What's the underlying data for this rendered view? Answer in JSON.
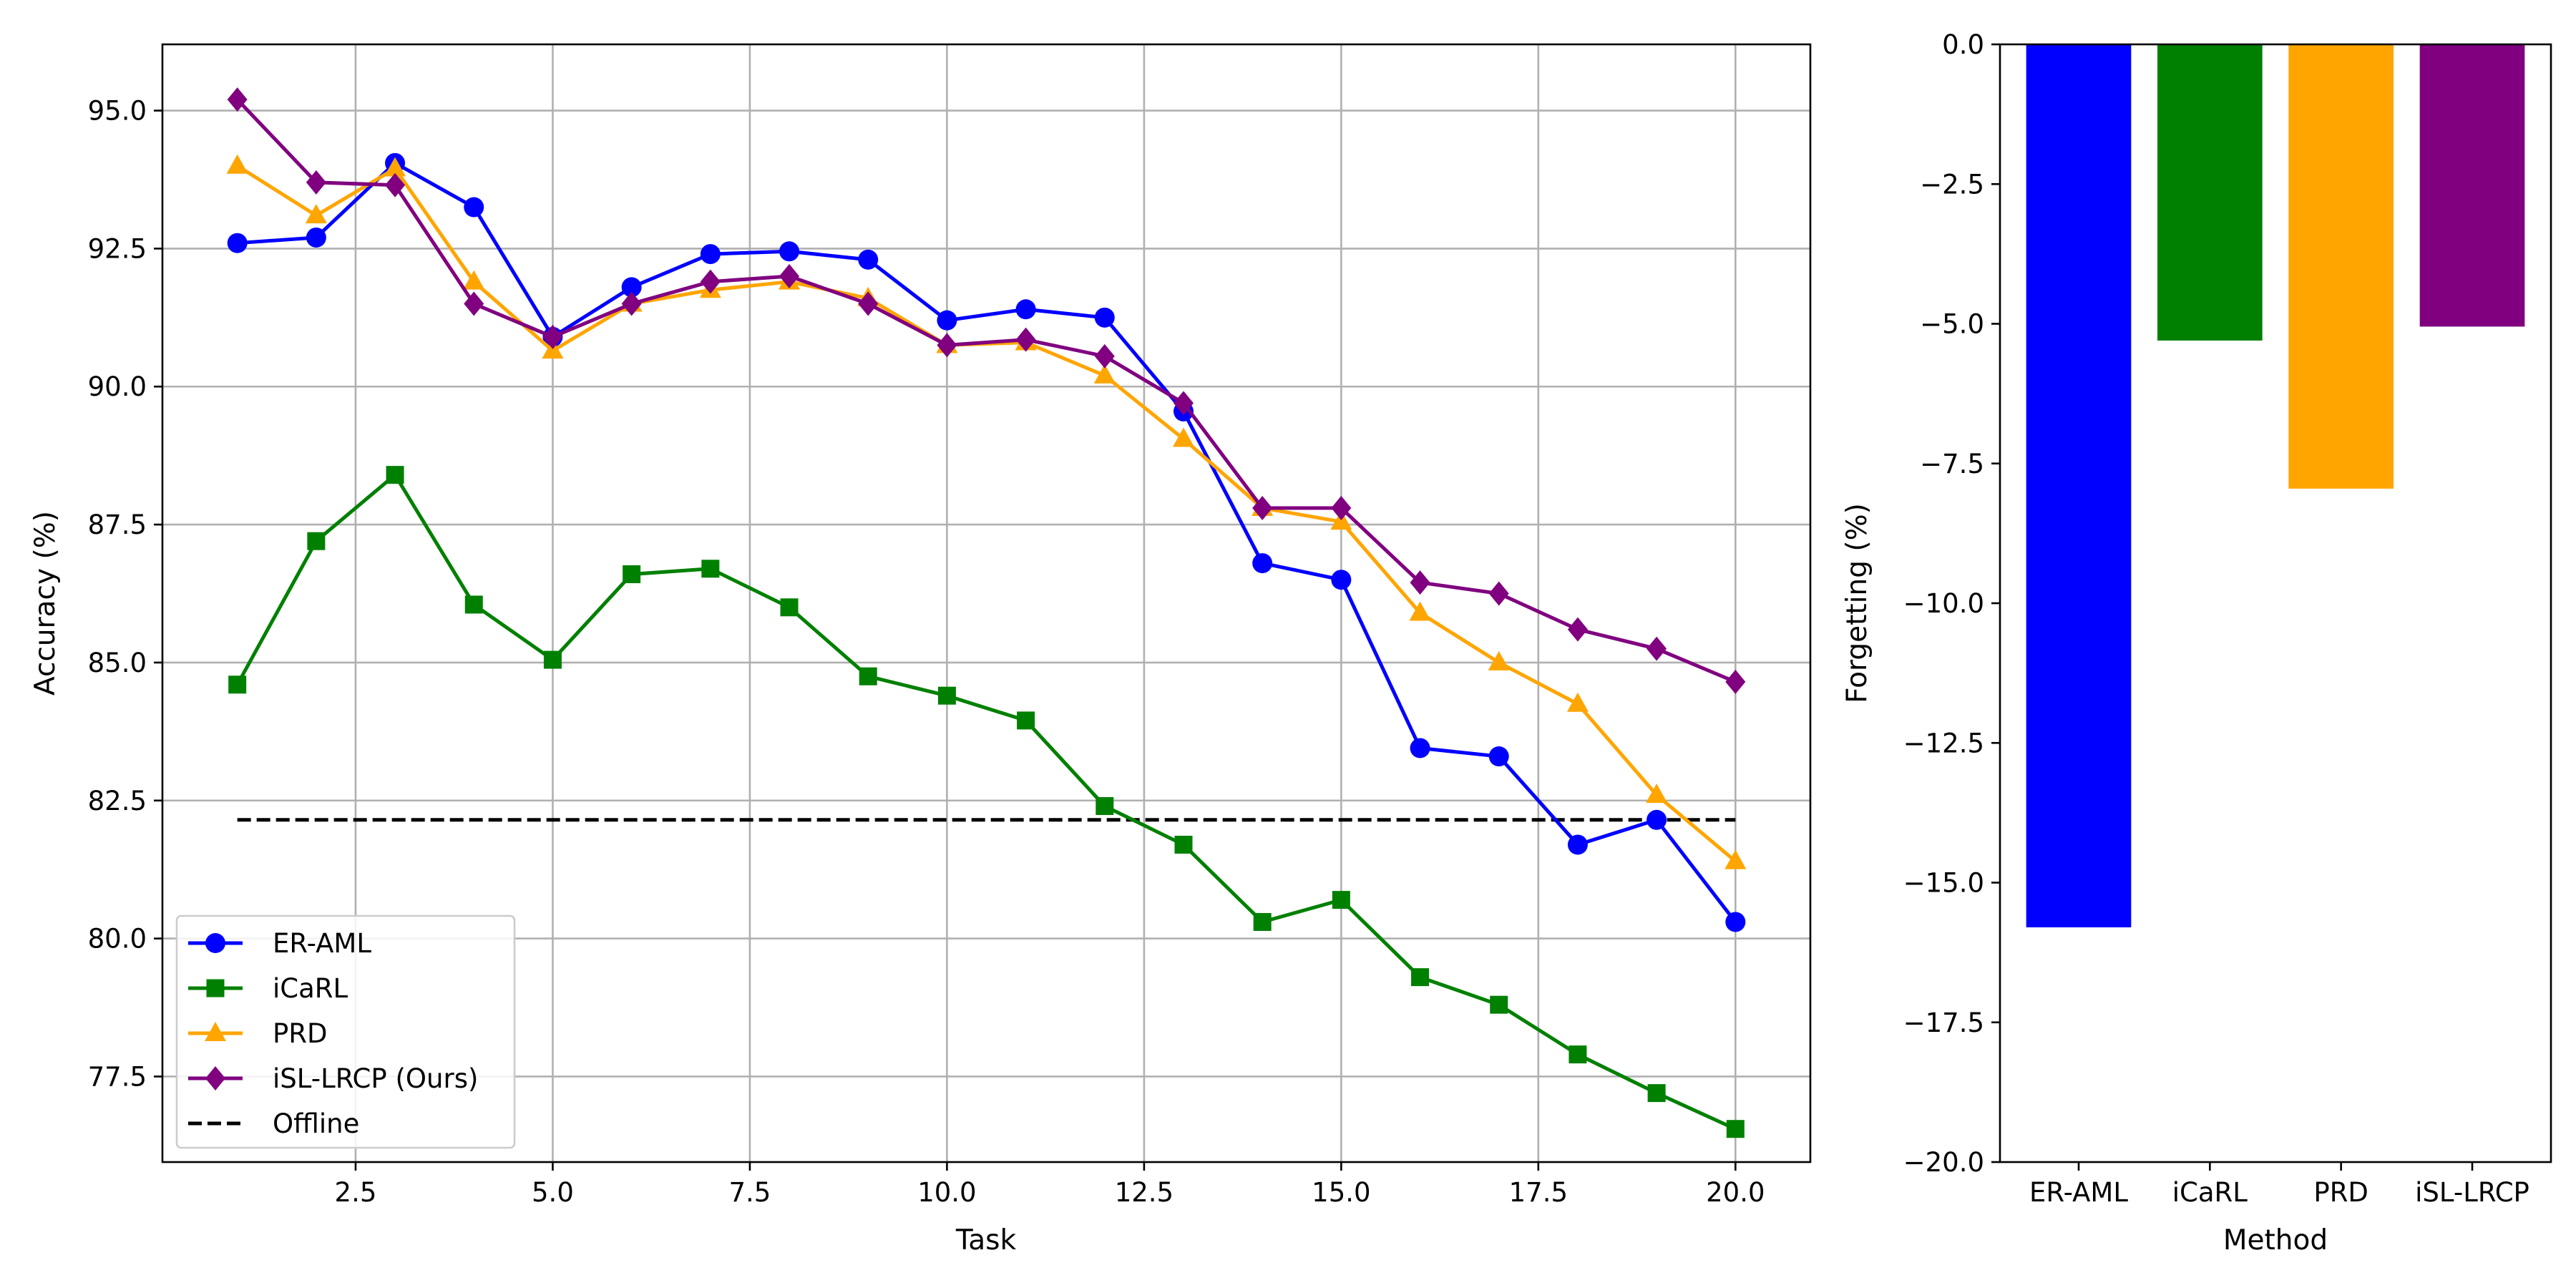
{
  "chart_data": [
    {
      "type": "line",
      "title": "",
      "xlabel": "Task",
      "ylabel": "Accuracy (%)",
      "xlim": [
        0.05,
        20.95
      ],
      "ylim": [
        75.95,
        96.2
      ],
      "xticks": [
        2.5,
        5.0,
        7.5,
        10.0,
        12.5,
        15.0,
        17.5,
        20.0
      ],
      "xtick_labels": [
        "2.5",
        "5.0",
        "7.5",
        "10.0",
        "12.5",
        "15.0",
        "17.5",
        "20.0"
      ],
      "yticks": [
        77.5,
        80.0,
        82.5,
        85.0,
        87.5,
        90.0,
        92.5,
        95.0
      ],
      "ytick_labels": [
        "77.5",
        "80.0",
        "82.5",
        "85.0",
        "87.5",
        "90.0",
        "92.5",
        "95.0"
      ],
      "grid": true,
      "legend_position": "lower-left",
      "x": [
        1,
        2,
        3,
        4,
        5,
        6,
        7,
        8,
        9,
        10,
        11,
        12,
        13,
        14,
        15,
        16,
        17,
        18,
        19,
        20
      ],
      "series": [
        {
          "name": "ER-AML",
          "color": "#0000ff",
          "marker": "circle",
          "values": [
            92.6,
            92.7,
            94.05,
            93.25,
            90.9,
            91.8,
            92.4,
            92.45,
            92.3,
            91.2,
            91.4,
            91.25,
            89.55,
            86.8,
            86.5,
            83.45,
            83.3,
            81.7,
            82.15,
            80.3
          ]
        },
        {
          "name": "iCaRL",
          "color": "#008000",
          "marker": "square",
          "values": [
            84.6,
            87.2,
            88.4,
            86.05,
            85.05,
            86.6,
            86.7,
            86.0,
            84.75,
            84.4,
            83.95,
            82.4,
            81.7,
            80.3,
            80.7,
            79.3,
            78.8,
            77.9,
            77.2,
            76.55
          ]
        },
        {
          "name": "PRD",
          "color": "#ffa500",
          "marker": "triangle",
          "values": [
            94.0,
            93.1,
            93.95,
            91.9,
            90.65,
            91.5,
            91.75,
            91.9,
            91.6,
            90.75,
            90.8,
            90.2,
            89.05,
            87.8,
            87.55,
            85.9,
            85.0,
            84.25,
            82.6,
            81.4
          ]
        },
        {
          "name": "iSL-LRCP (Ours)",
          "color": "#800080",
          "marker": "diamond",
          "values": [
            95.2,
            93.7,
            93.65,
            91.5,
            90.9,
            91.5,
            91.9,
            92.0,
            91.5,
            90.75,
            90.85,
            90.55,
            89.7,
            87.8,
            87.8,
            86.45,
            86.25,
            85.6,
            85.25,
            84.65
          ]
        }
      ],
      "reference_lines": [
        {
          "name": "Offline",
          "color": "#000000",
          "style": "dashed",
          "x": [
            1,
            20
          ],
          "y": 82.15
        }
      ]
    },
    {
      "type": "bar",
      "title": "",
      "xlabel": "Method",
      "ylabel": "Forgetting (%)",
      "ylim": [
        -20.0,
        0.0
      ],
      "yticks": [
        0.0,
        -2.5,
        -5.0,
        -7.5,
        -10.0,
        -12.5,
        -15.0,
        -17.5,
        -20.0
      ],
      "ytick_labels": [
        "0.0",
        "−2.5",
        "−5.0",
        "−7.5",
        "−10.0",
        "−12.5",
        "−15.0",
        "−17.5",
        "−20.0"
      ],
      "grid": false,
      "categories": [
        "ER-AML",
        "iCaRL",
        "PRD",
        "iSL-LRCP"
      ],
      "values": [
        -15.8,
        -5.3,
        -7.95,
        -5.05
      ],
      "colors": [
        "#0000ff",
        "#008000",
        "#ffa500",
        "#800080"
      ]
    }
  ]
}
